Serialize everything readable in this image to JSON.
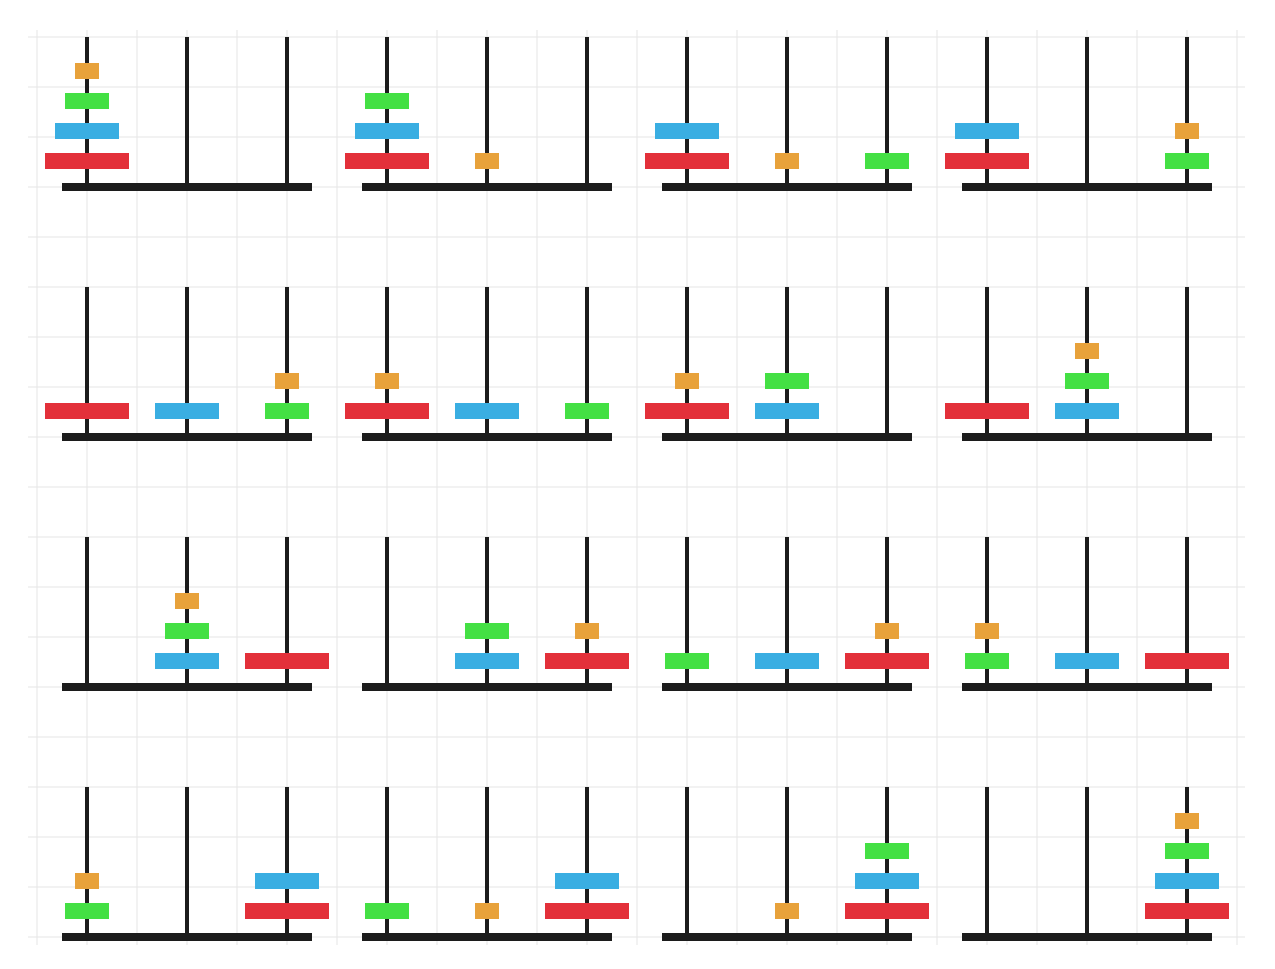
{
  "puzzle": {
    "name": "",
    "disk_colors": [
      "#e8a23b",
      "#44e044",
      "#3aaee2",
      "#e3303a"
    ],
    "disk_names": [
      "disk-smallest",
      "disk-small",
      "disk-large",
      "disk-largest"
    ],
    "pegs_per_state": 3,
    "states": [
      [
        [
          3,
          2,
          1,
          0
        ],
        [],
        []
      ],
      [
        [
          3,
          2,
          1
        ],
        [
          0
        ],
        []
      ],
      [
        [
          3,
          2
        ],
        [
          0
        ],
        [
          1
        ]
      ],
      [
        [
          3,
          2
        ],
        [],
        [
          1,
          0
        ]
      ],
      [
        [
          3
        ],
        [
          2
        ],
        [
          1,
          0
        ]
      ],
      [
        [
          3,
          0
        ],
        [
          2
        ],
        [
          1
        ]
      ],
      [
        [
          3,
          0
        ],
        [
          2,
          1
        ],
        []
      ],
      [
        [
          3
        ],
        [
          2,
          1,
          0
        ],
        []
      ],
      [
        [],
        [
          2,
          1,
          0
        ],
        [
          3
        ]
      ],
      [
        [],
        [
          2,
          1
        ],
        [
          3,
          0
        ]
      ],
      [
        [
          1
        ],
        [
          2
        ],
        [
          3,
          0
        ]
      ],
      [
        [
          1,
          0
        ],
        [
          2
        ],
        [
          3
        ]
      ],
      [
        [
          1,
          0
        ],
        [],
        [
          3,
          2
        ]
      ],
      [
        [
          1
        ],
        [
          0
        ],
        [
          3,
          2
        ]
      ],
      [
        [],
        [
          0
        ],
        [
          3,
          2,
          1
        ]
      ],
      [
        [],
        [],
        [
          3,
          2,
          1,
          0
        ]
      ]
    ]
  }
}
